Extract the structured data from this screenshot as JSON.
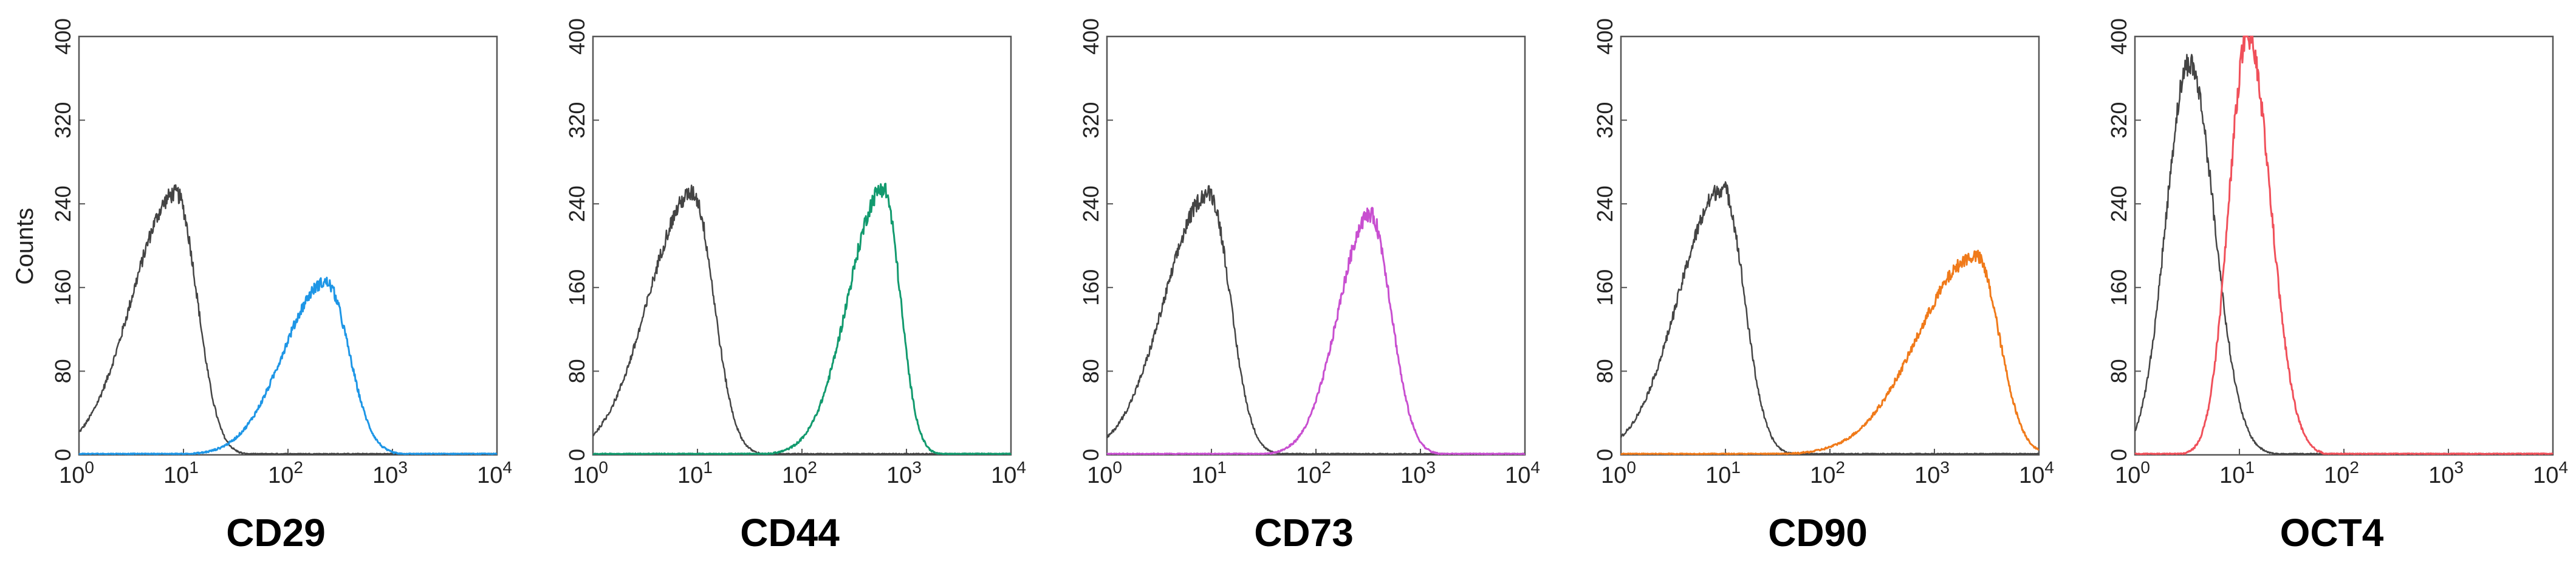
{
  "figure": {
    "ylabel": "Counts"
  },
  "chart_data": [
    {
      "type": "line",
      "title": "CD29",
      "xscale": "log",
      "xlim": [
        1,
        10000
      ],
      "ylim": [
        0,
        400
      ],
      "ylabel": "Counts",
      "xticks": [
        "10^0",
        "10^1",
        "10^2",
        "10^3",
        "10^4"
      ],
      "yticks": [
        0,
        80,
        160,
        240,
        320,
        400
      ],
      "colors": {
        "control": "#444444",
        "sample": "#1e96e6"
      },
      "series": [
        {
          "role": "control",
          "mode_x": 8.5,
          "mode_y": 250,
          "left_width_decades": 0.42,
          "right_width_decades": 0.2
        },
        {
          "role": "sample",
          "mode_x": 230,
          "mode_y": 165,
          "left_width_decades": 0.4,
          "right_width_decades": 0.22
        }
      ]
    },
    {
      "type": "line",
      "title": "CD44",
      "xscale": "log",
      "xlim": [
        1,
        10000
      ],
      "ylim": [
        0,
        400
      ],
      "ylabel": "",
      "xticks": [
        "10^0",
        "10^1",
        "10^2",
        "10^3",
        "10^4"
      ],
      "yticks": [
        0,
        80,
        160,
        240,
        320,
        400
      ],
      "colors": {
        "control": "#444444",
        "sample": "#129a6e"
      },
      "series": [
        {
          "role": "control",
          "mode_x": 9,
          "mode_y": 250,
          "left_width_decades": 0.42,
          "right_width_decades": 0.2
        },
        {
          "role": "sample",
          "mode_x": 600,
          "mode_y": 255,
          "left_width_decades": 0.33,
          "right_width_decades": 0.16
        }
      ]
    },
    {
      "type": "line",
      "title": "CD73",
      "xscale": "log",
      "xlim": [
        1,
        10000
      ],
      "ylim": [
        0,
        400
      ],
      "ylabel": "",
      "xticks": [
        "10^0",
        "10^1",
        "10^2",
        "10^3",
        "10^4"
      ],
      "yticks": [
        0,
        80,
        160,
        240,
        320,
        400
      ],
      "colors": {
        "control": "#444444",
        "sample": "#c84fd0"
      },
      "series": [
        {
          "role": "control",
          "mode_x": 9.5,
          "mode_y": 250,
          "left_width_decades": 0.42,
          "right_width_decades": 0.2
        },
        {
          "role": "sample",
          "mode_x": 330,
          "mode_y": 230,
          "left_width_decades": 0.3,
          "right_width_decades": 0.2
        }
      ]
    },
    {
      "type": "line",
      "title": "CD90",
      "xscale": "log",
      "xlim": [
        1,
        10000
      ],
      "ylim": [
        0,
        400
      ],
      "ylabel": "",
      "xticks": [
        "10^0",
        "10^1",
        "10^2",
        "10^3",
        "10^4"
      ],
      "yticks": [
        0,
        80,
        160,
        240,
        320,
        400
      ],
      "colors": {
        "control": "#444444",
        "sample": "#f07a1a"
      },
      "series": [
        {
          "role": "control",
          "mode_x": 9.5,
          "mode_y": 255,
          "left_width_decades": 0.42,
          "right_width_decades": 0.2
        },
        {
          "role": "sample",
          "mode_x": 2500,
          "mode_y": 190,
          "left_width_decades": 0.55,
          "right_width_decades": 0.22
        }
      ]
    },
    {
      "type": "line",
      "title": "OCT4",
      "xscale": "log",
      "xlim": [
        1,
        10000
      ],
      "ylim": [
        0,
        400
      ],
      "ylabel": "",
      "xticks": [
        "10^0",
        "10^1",
        "10^2",
        "10^3",
        "10^4"
      ],
      "yticks": [
        0,
        80,
        160,
        240,
        320,
        400
      ],
      "colors": {
        "control": "#444444",
        "sample": "#f0505a"
      },
      "series": [
        {
          "role": "control",
          "mode_x": 3.3,
          "mode_y": 375,
          "left_width_decades": 0.22,
          "right_width_decades": 0.24
        },
        {
          "role": "sample",
          "mode_x": 12,
          "mode_y": 400,
          "left_width_decades": 0.18,
          "right_width_decades": 0.22
        }
      ]
    }
  ]
}
